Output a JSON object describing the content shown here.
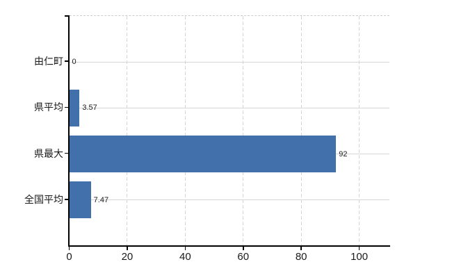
{
  "chart_data": {
    "type": "bar",
    "orientation": "horizontal",
    "title": "",
    "xlabel": "",
    "ylabel": "",
    "categories": [
      "由仁町",
      "県平均",
      "県最大",
      "全国平均"
    ],
    "values": [
      0,
      3.57,
      92,
      7.47
    ],
    "value_labels": [
      "0",
      "3.57",
      "92",
      "7.47"
    ],
    "xticks": [
      0,
      20,
      40,
      60,
      80,
      100
    ],
    "xtick_labels": [
      "0",
      "20",
      "40",
      "60",
      "80",
      "100"
    ],
    "xlim": [
      0,
      110.4
    ],
    "grid": true,
    "legend": false,
    "colors": {
      "bar": "#4170ab",
      "axis": "#000000",
      "gridline": "#d5d5d5",
      "plot_top_border": "#cccccc",
      "text": "#1a1a1a",
      "background": "#ffffff"
    }
  }
}
